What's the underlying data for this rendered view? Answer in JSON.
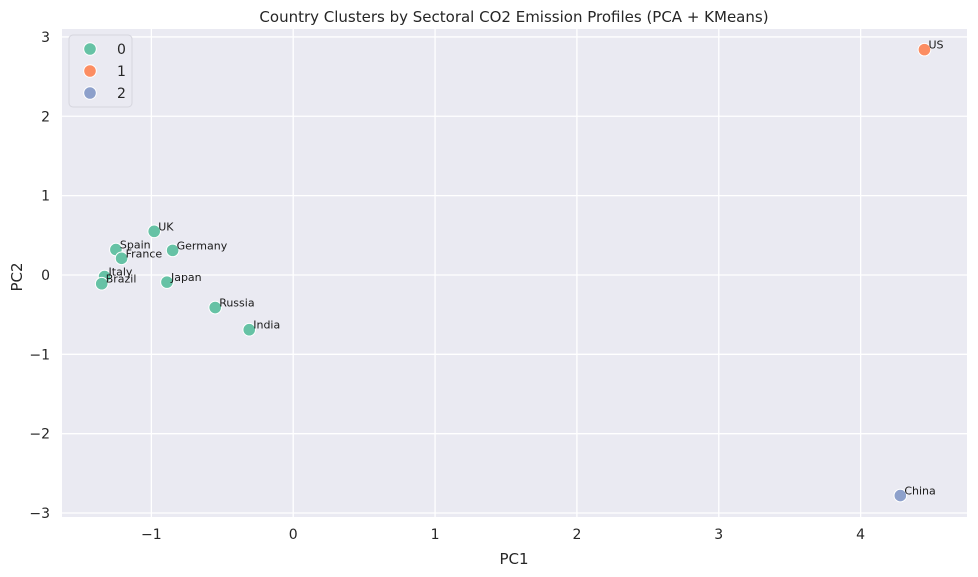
{
  "chart_data": {
    "type": "scatter",
    "title": "Country Clusters by Sectoral CO2 Emission Profiles (PCA + KMeans)",
    "xlabel": "PC1",
    "ylabel": "PC2",
    "xlim": [
      -1.63,
      4.75
    ],
    "ylim": [
      -3.05,
      3.1
    ],
    "xticks": [
      -1,
      0,
      1,
      2,
      3,
      4
    ],
    "yticks": [
      -3,
      -2,
      -1,
      0,
      1,
      2,
      3
    ],
    "tick_labels_x": [
      "−1",
      "0",
      "1",
      "2",
      "3",
      "4"
    ],
    "tick_labels_y": [
      "−3",
      "−2",
      "−1",
      "0",
      "1",
      "2",
      "3"
    ],
    "grid": true,
    "legend_position": "top-left",
    "series": [
      {
        "name": "0",
        "color": "#66c2a5"
      },
      {
        "name": "1",
        "color": "#fc8d62"
      },
      {
        "name": "2",
        "color": "#8da0cb"
      }
    ],
    "points": [
      {
        "label": "UK",
        "x": -0.98,
        "y": 0.55,
        "cluster": "0"
      },
      {
        "label": "Germany",
        "x": -0.85,
        "y": 0.31,
        "cluster": "0"
      },
      {
        "label": "Spain",
        "x": -1.25,
        "y": 0.32,
        "cluster": "0"
      },
      {
        "label": "France",
        "x": -1.21,
        "y": 0.21,
        "cluster": "0"
      },
      {
        "label": "Italy",
        "x": -1.33,
        "y": -0.02,
        "cluster": "0"
      },
      {
        "label": "Brazil",
        "x": -1.35,
        "y": -0.11,
        "cluster": "0"
      },
      {
        "label": "Japan",
        "x": -0.89,
        "y": -0.09,
        "cluster": "0"
      },
      {
        "label": "Russia",
        "x": -0.55,
        "y": -0.41,
        "cluster": "0"
      },
      {
        "label": "India",
        "x": -0.31,
        "y": -0.69,
        "cluster": "0"
      },
      {
        "label": "US",
        "x": 4.45,
        "y": 2.84,
        "cluster": "1"
      },
      {
        "label": "China",
        "x": 4.28,
        "y": -2.78,
        "cluster": "2"
      }
    ]
  }
}
